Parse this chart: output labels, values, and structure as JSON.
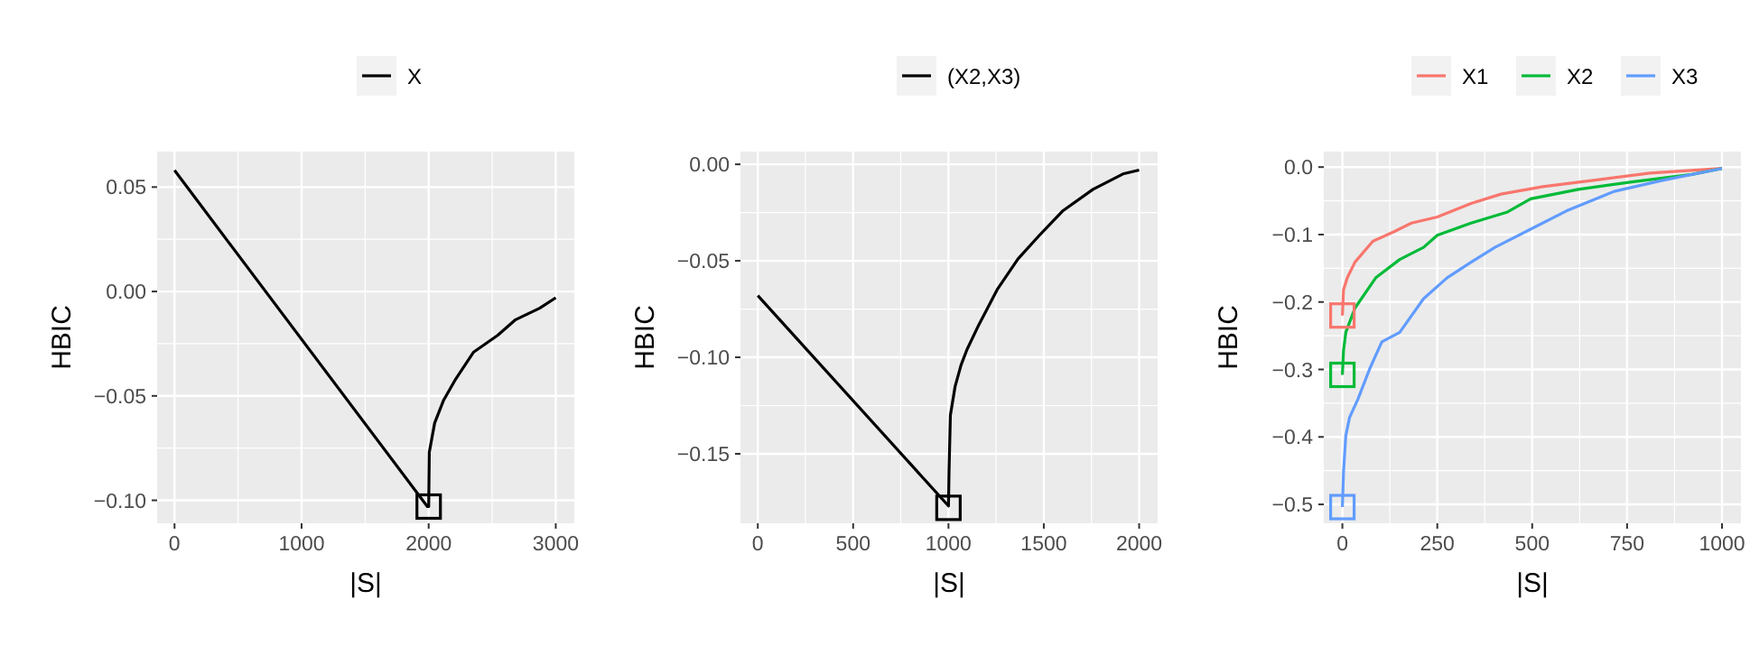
{
  "chart_data": [
    {
      "type": "line",
      "xlabel": "|S|",
      "ylabel": "HBIC",
      "legend": "top",
      "grid": true,
      "xlim": [
        -137,
        3146
      ],
      "ylim": [
        -0.111,
        0.067
      ],
      "xticks": [
        0,
        1000,
        2000,
        3000
      ],
      "yticks": [
        {
          "value": -0.1,
          "label": "−0.10"
        },
        {
          "value": -0.05,
          "label": "−0.05"
        },
        {
          "value": 0,
          "label": "0.00"
        },
        {
          "value": 0.05,
          "label": "0.05"
        }
      ],
      "series": [
        {
          "name": "X",
          "color": "#000000",
          "x": [
            0,
            1990,
            2000,
            2005,
            2047,
            2118,
            2212,
            2354,
            2542,
            2684,
            2873,
            3000
          ],
          "values": [
            0.058,
            -0.103,
            -0.103,
            -0.077,
            -0.063,
            -0.052,
            -0.042,
            -0.029,
            -0.021,
            -0.0135,
            -0.008,
            -0.003
          ]
        },
        {
          "type": "scatter",
          "marker": "square",
          "color": "#000000",
          "x": [
            2000
          ],
          "values": [
            -0.103
          ]
        }
      ]
    },
    {
      "type": "line",
      "xlabel": "|S|",
      "ylabel": "HBIC",
      "legend": "top",
      "grid": true,
      "xlim": [
        -91,
        2097
      ],
      "ylim": [
        -0.186,
        0.0066
      ],
      "xticks": [
        0,
        500,
        1000,
        1500,
        2000
      ],
      "yticks": [
        {
          "value": -0.15,
          "label": "−0.15"
        },
        {
          "value": -0.1,
          "label": "−0.10"
        },
        {
          "value": -0.05,
          "label": "−0.05"
        },
        {
          "value": 0,
          "label": "0.00"
        }
      ],
      "series": [
        {
          "name": "(X2,X3)",
          "color": "#000000",
          "x": [
            0,
            1000,
            1003,
            1010,
            1035,
            1066,
            1097,
            1160,
            1255,
            1365,
            1475,
            1601,
            1758,
            1915,
            2000
          ],
          "values": [
            -0.068,
            -0.177,
            -0.159,
            -0.13,
            -0.115,
            -0.104,
            -0.096,
            -0.083,
            -0.065,
            -0.049,
            -0.037,
            -0.024,
            -0.013,
            -0.005,
            -0.003
          ]
        },
        {
          "type": "scatter",
          "marker": "square",
          "color": "#000000",
          "x": [
            1000
          ],
          "values": [
            -0.178
          ]
        }
      ]
    },
    {
      "type": "line",
      "xlabel": "|S|",
      "ylabel": "HBIC",
      "legend": "top",
      "grid": true,
      "xlim": [
        -49,
        1050
      ],
      "ylim": [
        -0.528,
        0.023
      ],
      "xticks": [
        0,
        250,
        500,
        750,
        1000
      ],
      "yticks": [
        {
          "value": -0.5,
          "label": "−0.5"
        },
        {
          "value": -0.4,
          "label": "−0.4"
        },
        {
          "value": -0.3,
          "label": "−0.3"
        },
        {
          "value": -0.2,
          "label": "−0.2"
        },
        {
          "value": -0.1,
          "label": "−0.1"
        },
        {
          "value": 0,
          "label": "0.0"
        }
      ],
      "series": [
        {
          "name": "X1",
          "color": "#f8766d",
          "x": [
            0,
            3,
            13,
            33,
            80,
            135,
            182,
            250,
            339,
            418,
            528,
            685,
            810,
            1000
          ],
          "values": [
            -0.22,
            -0.182,
            -0.164,
            -0.141,
            -0.11,
            -0.096,
            -0.083,
            -0.074,
            -0.054,
            -0.04,
            -0.029,
            -0.018,
            -0.009,
            -0.002
          ]
        },
        {
          "name": "X2",
          "color": "#00ba38",
          "x": [
            0,
            3,
            9,
            33,
            88,
            151,
            214,
            250,
            339,
            433,
            496,
            622,
            763,
            920,
            1000
          ],
          "values": [
            -0.308,
            -0.272,
            -0.245,
            -0.209,
            -0.164,
            -0.137,
            -0.119,
            -0.101,
            -0.083,
            -0.067,
            -0.047,
            -0.033,
            -0.022,
            -0.011,
            -0.002
          ]
        },
        {
          "name": "X3",
          "color": "#619cff",
          "x": [
            0,
            3,
            9,
            19,
            41,
            72,
            104,
            151,
            214,
            276,
            339,
            402,
            496,
            590,
            716,
            841,
            1000
          ],
          "values": [
            -0.504,
            -0.452,
            -0.398,
            -0.371,
            -0.344,
            -0.299,
            -0.259,
            -0.245,
            -0.195,
            -0.164,
            -0.141,
            -0.119,
            -0.092,
            -0.065,
            -0.036,
            -0.02,
            -0.002
          ]
        },
        {
          "type": "scatter",
          "marker": "square",
          "color": "#f8766d",
          "x": [
            0
          ],
          "values": [
            -0.22
          ]
        },
        {
          "type": "scatter",
          "marker": "square",
          "color": "#00ba38",
          "x": [
            0
          ],
          "values": [
            -0.308
          ]
        },
        {
          "type": "scatter",
          "marker": "square",
          "color": "#619cff",
          "x": [
            0
          ],
          "values": [
            -0.504
          ]
        }
      ]
    }
  ]
}
